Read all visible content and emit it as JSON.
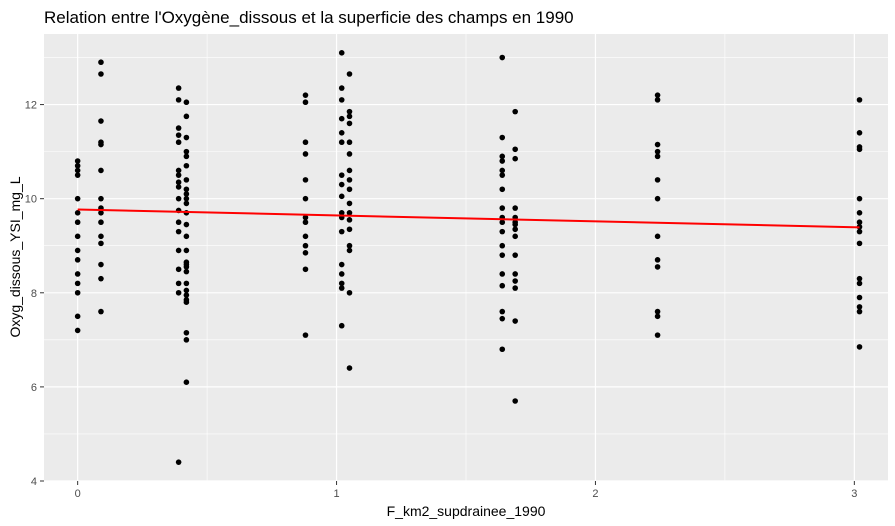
{
  "chart_data": {
    "type": "scatter",
    "title": "Relation entre l'Oxygène_dissous et la superficie des champs en 1990",
    "xlabel": "F_km2_supdrainee_1990",
    "ylabel": "Oxyg_dissous_YSI_mg_L",
    "xlim": [
      -0.13,
      3.13
    ],
    "ylim": [
      4,
      13.5
    ],
    "x_ticks": [
      0,
      1,
      2,
      3
    ],
    "y_ticks": [
      4,
      6,
      8,
      10,
      12
    ],
    "grid": true,
    "background": "#ebebeb",
    "point_color": "#000000",
    "trend_color": "#ff0000",
    "points": [
      [
        0,
        10.8
      ],
      [
        0,
        10.7
      ],
      [
        0,
        10.6
      ],
      [
        0,
        10.5
      ],
      [
        0,
        10.0
      ],
      [
        0,
        9.7
      ],
      [
        0,
        9.5
      ],
      [
        0,
        9.2
      ],
      [
        0,
        8.9
      ],
      [
        0,
        8.7
      ],
      [
        0,
        8.4
      ],
      [
        0,
        8.2
      ],
      [
        0,
        8.0
      ],
      [
        0,
        7.5
      ],
      [
        0,
        7.2
      ],
      [
        0.09,
        12.9
      ],
      [
        0.09,
        12.65
      ],
      [
        0.09,
        11.65
      ],
      [
        0.09,
        11.2
      ],
      [
        0.09,
        11.15
      ],
      [
        0.09,
        10.6
      ],
      [
        0.09,
        10.0
      ],
      [
        0.09,
        9.8
      ],
      [
        0.09,
        9.7
      ],
      [
        0.09,
        9.5
      ],
      [
        0.09,
        9.2
      ],
      [
        0.09,
        9.05
      ],
      [
        0.09,
        8.6
      ],
      [
        0.09,
        8.3
      ],
      [
        0.09,
        7.6
      ],
      [
        0.39,
        12.35
      ],
      [
        0.39,
        12.1
      ],
      [
        0.39,
        11.5
      ],
      [
        0.39,
        11.35
      ],
      [
        0.39,
        11.2
      ],
      [
        0.39,
        10.6
      ],
      [
        0.39,
        10.5
      ],
      [
        0.39,
        10.35
      ],
      [
        0.39,
        10.25
      ],
      [
        0.39,
        10.0
      ],
      [
        0.39,
        9.75
      ],
      [
        0.39,
        9.5
      ],
      [
        0.39,
        9.3
      ],
      [
        0.39,
        8.9
      ],
      [
        0.39,
        8.5
      ],
      [
        0.39,
        8.2
      ],
      [
        0.39,
        8.0
      ],
      [
        0.39,
        4.4
      ],
      [
        0.42,
        12.05
      ],
      [
        0.42,
        11.75
      ],
      [
        0.42,
        11.3
      ],
      [
        0.42,
        11.0
      ],
      [
        0.42,
        10.9
      ],
      [
        0.42,
        10.7
      ],
      [
        0.42,
        10.4
      ],
      [
        0.42,
        10.2
      ],
      [
        0.42,
        10.1
      ],
      [
        0.42,
        10.0
      ],
      [
        0.42,
        9.9
      ],
      [
        0.42,
        9.7
      ],
      [
        0.42,
        9.45
      ],
      [
        0.42,
        9.2
      ],
      [
        0.42,
        8.9
      ],
      [
        0.42,
        8.65
      ],
      [
        0.42,
        8.6
      ],
      [
        0.42,
        8.55
      ],
      [
        0.42,
        8.45
      ],
      [
        0.42,
        8.2
      ],
      [
        0.42,
        8.05
      ],
      [
        0.42,
        7.95
      ],
      [
        0.42,
        7.85
      ],
      [
        0.42,
        7.8
      ],
      [
        0.42,
        7.15
      ],
      [
        0.42,
        7.0
      ],
      [
        0.42,
        6.1
      ],
      [
        0.88,
        12.2
      ],
      [
        0.88,
        12.05
      ],
      [
        0.88,
        11.2
      ],
      [
        0.88,
        10.95
      ],
      [
        0.88,
        10.4
      ],
      [
        0.88,
        10.0
      ],
      [
        0.88,
        9.6
      ],
      [
        0.88,
        9.5
      ],
      [
        0.88,
        9.2
      ],
      [
        0.88,
        9.0
      ],
      [
        0.88,
        8.85
      ],
      [
        0.88,
        8.5
      ],
      [
        0.88,
        7.1
      ],
      [
        1.02,
        13.1
      ],
      [
        1.02,
        12.35
      ],
      [
        1.02,
        12.1
      ],
      [
        1.02,
        11.7
      ],
      [
        1.02,
        11.4
      ],
      [
        1.02,
        11.2
      ],
      [
        1.02,
        10.5
      ],
      [
        1.02,
        10.3
      ],
      [
        1.02,
        10.05
      ],
      [
        1.02,
        9.7
      ],
      [
        1.02,
        9.6
      ],
      [
        1.02,
        9.3
      ],
      [
        1.02,
        8.6
      ],
      [
        1.02,
        8.4
      ],
      [
        1.02,
        8.2
      ],
      [
        1.02,
        8.1
      ],
      [
        1.02,
        7.3
      ],
      [
        1.05,
        12.65
      ],
      [
        1.05,
        11.85
      ],
      [
        1.05,
        11.75
      ],
      [
        1.05,
        11.6
      ],
      [
        1.05,
        11.2
      ],
      [
        1.05,
        10.95
      ],
      [
        1.05,
        10.6
      ],
      [
        1.05,
        10.4
      ],
      [
        1.05,
        10.2
      ],
      [
        1.05,
        9.9
      ],
      [
        1.05,
        9.7
      ],
      [
        1.05,
        9.55
      ],
      [
        1.05,
        9.35
      ],
      [
        1.05,
        9.0
      ],
      [
        1.05,
        8.9
      ],
      [
        1.05,
        8.0
      ],
      [
        1.05,
        6.4
      ],
      [
        1.64,
        13.0
      ],
      [
        1.64,
        11.3
      ],
      [
        1.64,
        10.9
      ],
      [
        1.64,
        10.8
      ],
      [
        1.64,
        10.6
      ],
      [
        1.64,
        10.5
      ],
      [
        1.64,
        10.2
      ],
      [
        1.64,
        9.8
      ],
      [
        1.64,
        9.6
      ],
      [
        1.64,
        9.5
      ],
      [
        1.64,
        9.3
      ],
      [
        1.64,
        9.0
      ],
      [
        1.64,
        8.8
      ],
      [
        1.64,
        8.4
      ],
      [
        1.64,
        8.15
      ],
      [
        1.64,
        7.6
      ],
      [
        1.64,
        7.45
      ],
      [
        1.64,
        6.8
      ],
      [
        1.69,
        11.85
      ],
      [
        1.69,
        11.05
      ],
      [
        1.69,
        10.85
      ],
      [
        1.69,
        9.8
      ],
      [
        1.69,
        9.6
      ],
      [
        1.69,
        9.5
      ],
      [
        1.69,
        9.45
      ],
      [
        1.69,
        9.35
      ],
      [
        1.69,
        9.2
      ],
      [
        1.69,
        8.8
      ],
      [
        1.69,
        8.4
      ],
      [
        1.69,
        8.25
      ],
      [
        1.69,
        8.1
      ],
      [
        1.69,
        7.4
      ],
      [
        1.69,
        5.7
      ],
      [
        2.24,
        12.2
      ],
      [
        2.24,
        12.1
      ],
      [
        2.24,
        11.15
      ],
      [
        2.24,
        11.0
      ],
      [
        2.24,
        10.9
      ],
      [
        2.24,
        10.4
      ],
      [
        2.24,
        10.0
      ],
      [
        2.24,
        9.2
      ],
      [
        2.24,
        8.7
      ],
      [
        2.24,
        8.55
      ],
      [
        2.24,
        7.6
      ],
      [
        2.24,
        7.5
      ],
      [
        2.24,
        7.1
      ],
      [
        3.02,
        12.1
      ],
      [
        3.02,
        11.4
      ],
      [
        3.02,
        11.1
      ],
      [
        3.02,
        11.05
      ],
      [
        3.02,
        10.0
      ],
      [
        3.02,
        9.7
      ],
      [
        3.02,
        9.5
      ],
      [
        3.02,
        9.4
      ],
      [
        3.02,
        9.3
      ],
      [
        3.02,
        9.05
      ],
      [
        3.02,
        8.3
      ],
      [
        3.02,
        8.2
      ],
      [
        3.02,
        7.9
      ],
      [
        3.02,
        7.7
      ],
      [
        3.02,
        7.6
      ],
      [
        3.02,
        6.85
      ]
    ],
    "trend_line": {
      "x": [
        0,
        3.02
      ],
      "y": [
        9.77,
        9.39
      ]
    }
  }
}
